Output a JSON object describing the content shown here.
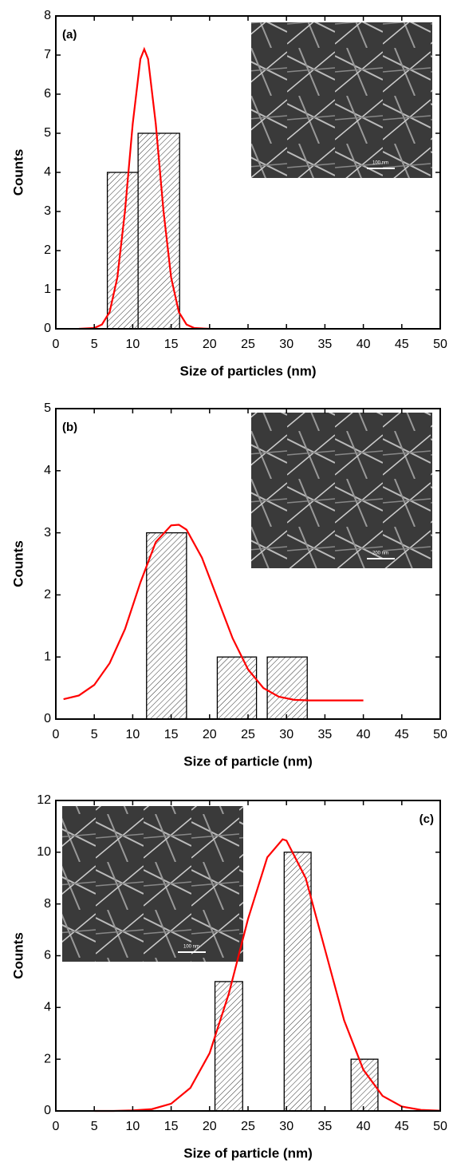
{
  "chart_data": [
    {
      "type": "histogram_fit",
      "panel_label": "(a)",
      "xlabel": "Size of particles (nm)",
      "ylabel": "Counts",
      "xlim": [
        0,
        50
      ],
      "ylim": [
        0,
        8
      ],
      "xticks": [
        0,
        5,
        10,
        15,
        20,
        25,
        30,
        35,
        40,
        45,
        50
      ],
      "yticks": [
        0,
        1,
        2,
        3,
        4,
        5,
        6,
        7,
        8
      ],
      "bars": {
        "left": [
          6.7,
          10.7
        ],
        "right": [
          12.2,
          16.1
        ],
        "counts": [
          4,
          5
        ]
      },
      "fit": {
        "color": "#ff0000",
        "x": [
          3,
          5,
          6,
          7,
          8,
          9,
          10,
          11,
          11.5,
          12,
          13,
          14,
          15,
          16,
          17,
          18,
          20
        ],
        "y": [
          0,
          0.02,
          0.11,
          0.43,
          1.31,
          3.02,
          5.24,
          6.9,
          7.15,
          6.9,
          5.24,
          3.02,
          1.31,
          0.43,
          0.11,
          0.02,
          0
        ]
      },
      "inset": {
        "scale_label": "100 nm"
      }
    },
    {
      "type": "histogram_fit",
      "panel_label": "(b)",
      "xlabel": "Size of  particle (nm)",
      "ylabel": "Counts",
      "xlim": [
        0,
        50
      ],
      "ylim": [
        0,
        5
      ],
      "xticks": [
        0,
        5,
        10,
        15,
        20,
        25,
        30,
        35,
        40,
        45,
        50
      ],
      "yticks": [
        0,
        1,
        2,
        3,
        4,
        5
      ],
      "bars": {
        "left": [
          11.8,
          21.0,
          27.5
        ],
        "right": [
          17.0,
          26.1,
          32.7
        ],
        "counts": [
          3,
          1,
          1
        ]
      },
      "fit": {
        "color": "#ff0000",
        "x": [
          1,
          3,
          5,
          7,
          9,
          11,
          13,
          15,
          16,
          17,
          19,
          21,
          23,
          25,
          27,
          29,
          31,
          33,
          35,
          40
        ],
        "y": [
          0.32,
          0.38,
          0.55,
          0.9,
          1.45,
          2.2,
          2.85,
          3.12,
          3.13,
          3.05,
          2.6,
          1.95,
          1.3,
          0.8,
          0.5,
          0.36,
          0.31,
          0.3,
          0.3,
          0.3
        ]
      },
      "inset": {
        "scale_label": "200 nm"
      }
    },
    {
      "type": "histogram_fit",
      "panel_label": "(c)",
      "xlabel": "Size of  particle (nm)",
      "ylabel": "Counts",
      "xlim": [
        0,
        50
      ],
      "ylim": [
        0,
        12
      ],
      "xticks": [
        0,
        5,
        10,
        15,
        20,
        25,
        30,
        35,
        40,
        45,
        50
      ],
      "yticks": [
        0,
        2,
        4,
        6,
        8,
        10,
        12
      ],
      "bars": {
        "left": [
          20.7,
          29.7,
          38.4
        ],
        "right": [
          24.3,
          33.2,
          41.9
        ],
        "counts": [
          5,
          10,
          2
        ]
      },
      "fit": {
        "color": "#ff0000",
        "x": [
          5,
          7.5,
          10,
          12.5,
          15,
          17.5,
          20,
          22.5,
          25,
          27.5,
          29.5,
          30,
          32.5,
          35,
          37.5,
          40,
          42.5,
          45,
          47.5,
          50
        ],
        "y": [
          0,
          0,
          0.02,
          0.07,
          0.28,
          0.89,
          2.23,
          4.53,
          7.42,
          9.8,
          10.5,
          10.45,
          9.0,
          6.25,
          3.5,
          1.59,
          0.58,
          0.17,
          0.04,
          0.01
        ]
      },
      "inset": {
        "scale_label": "100 nm"
      }
    }
  ]
}
